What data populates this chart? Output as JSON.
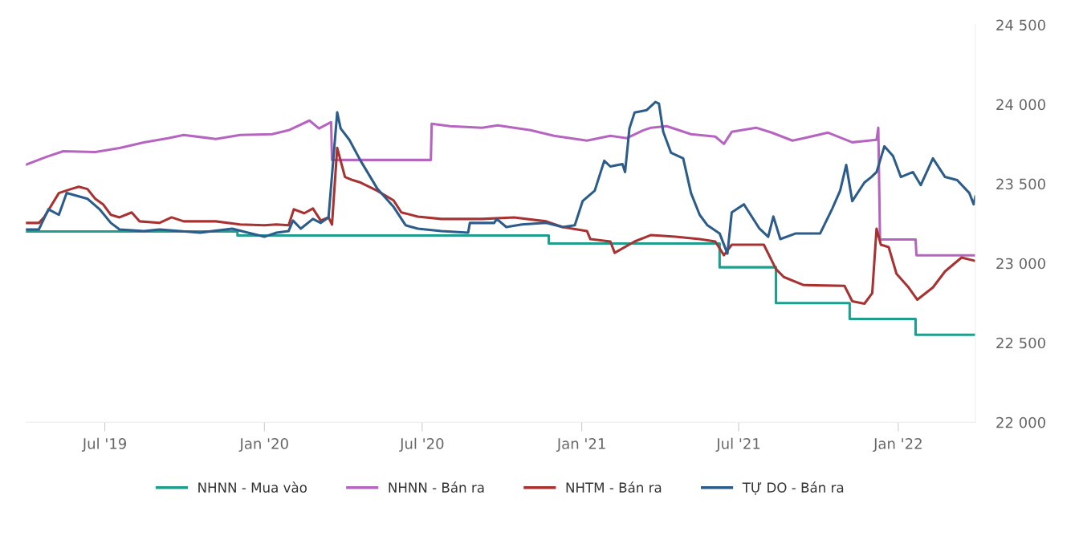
{
  "chart_data": {
    "type": "line",
    "xlim": [
      "2019-04-01",
      "2022-03-31"
    ],
    "xticks": [
      {
        "value": "2019-07-01",
        "label": "Jul '19"
      },
      {
        "value": "2020-01-01",
        "label": "Jan '20"
      },
      {
        "value": "2020-07-01",
        "label": "Jul '20"
      },
      {
        "value": "2021-01-01",
        "label": "Jan '21"
      },
      {
        "value": "2021-07-01",
        "label": "Jul '21"
      },
      {
        "value": "2022-01-01",
        "label": "Jan '22"
      }
    ],
    "ylim": [
      22000,
      24500
    ],
    "yticks": [
      {
        "value": 22000,
        "label": "22 000"
      },
      {
        "value": 22500,
        "label": "22 500"
      },
      {
        "value": 23000,
        "label": "23 000"
      },
      {
        "value": 23500,
        "label": "23 500"
      },
      {
        "value": 24000,
        "label": "24 000"
      },
      {
        "value": 24500,
        "label": "24 500"
      }
    ],
    "grid": false,
    "legend": "bottom",
    "marker": "none",
    "line_style": "solid",
    "series": [
      {
        "name": "NHNN - Mua vào",
        "color": "#1f9e8e",
        "type": "step",
        "x": [
          "2019-04-01",
          "2019-12-01",
          "2020-11-24",
          "2021-06-09",
          "2021-08-13",
          "2021-11-06",
          "2022-01-21",
          "2022-03-31"
        ],
        "values": [
          23200,
          23175,
          23125,
          22975,
          22750,
          22650,
          22550,
          22550
        ]
      },
      {
        "name": "NHNN - Bán ra",
        "color": "#b565c0",
        "x": [
          "2019-04-01",
          "2019-04-25",
          "2019-05-14",
          "2019-06-20",
          "2019-07-18",
          "2019-08-15",
          "2019-09-12",
          "2019-09-30",
          "2019-11-06",
          "2019-12-04",
          "2020-01-10",
          "2020-01-29",
          "2020-02-22",
          "2020-03-04",
          "2020-03-18",
          "2020-03-19",
          "2020-07-11",
          "2020-07-12",
          "2020-08-02",
          "2020-09-08",
          "2020-09-26",
          "2020-11-03",
          "2020-11-30",
          "2021-01-07",
          "2021-02-03",
          "2021-02-22",
          "2021-03-13",
          "2021-03-22",
          "2021-04-09",
          "2021-05-07",
          "2021-06-04",
          "2021-06-14",
          "2021-06-23",
          "2021-07-21",
          "2021-08-08",
          "2021-09-01",
          "2021-09-14",
          "2021-10-12",
          "2021-11-09",
          "2021-11-28",
          "2021-12-07",
          "2021-12-09",
          "2021-12-11",
          "2022-01-21",
          "2022-01-22",
          "2022-03-31"
        ],
        "values": [
          23620,
          23670,
          23705,
          23700,
          23725,
          23760,
          23787,
          23807,
          23782,
          23807,
          23812,
          23837,
          23898,
          23848,
          23888,
          23650,
          23650,
          23878,
          23863,
          23853,
          23868,
          23837,
          23802,
          23772,
          23802,
          23787,
          23837,
          23853,
          23863,
          23812,
          23797,
          23751,
          23827,
          23853,
          23822,
          23772,
          23787,
          23822,
          23761,
          23772,
          23777,
          23853,
          23150,
          23150,
          23050,
          23050
        ]
      },
      {
        "name": "NHTM - Bán ra",
        "color": "#a83232",
        "x": [
          "2019-04-01",
          "2019-04-16",
          "2019-04-22",
          "2019-05-09",
          "2019-05-23",
          "2019-06-01",
          "2019-06-11",
          "2019-06-20",
          "2019-06-29",
          "2019-07-08",
          "2019-07-18",
          "2019-08-01",
          "2019-08-10",
          "2019-09-02",
          "2019-09-16",
          "2019-09-30",
          "2019-11-06",
          "2019-12-04",
          "2020-01-01",
          "2020-01-15",
          "2020-01-29",
          "2020-02-04",
          "2020-02-16",
          "2020-02-26",
          "2020-03-06",
          "2020-03-15",
          "2020-03-19",
          "2020-03-25",
          "2020-04-03",
          "2020-04-12",
          "2020-04-21",
          "2020-05-10",
          "2020-05-29",
          "2020-06-07",
          "2020-06-26",
          "2020-07-23",
          "2020-09-08",
          "2020-10-15",
          "2020-11-21",
          "2020-12-10",
          "2021-01-07",
          "2021-01-11",
          "2021-02-03",
          "2021-02-08",
          "2021-03-03",
          "2021-03-22",
          "2021-04-19",
          "2021-05-17",
          "2021-06-04",
          "2021-06-14",
          "2021-06-23",
          "2021-07-21",
          "2021-07-30",
          "2021-08-13",
          "2021-08-22",
          "2021-09-14",
          "2021-10-31",
          "2021-11-09",
          "2021-11-23",
          "2021-12-02",
          "2021-12-07",
          "2021-12-12",
          "2021-12-21",
          "2021-12-30",
          "2022-01-13",
          "2022-01-23",
          "2022-02-10",
          "2022-02-24",
          "2022-03-15",
          "2022-03-31"
        ],
        "values": [
          23254,
          23254,
          23289,
          23442,
          23467,
          23482,
          23467,
          23406,
          23371,
          23305,
          23289,
          23320,
          23264,
          23254,
          23289,
          23264,
          23264,
          23244,
          23239,
          23244,
          23239,
          23340,
          23315,
          23345,
          23269,
          23289,
          23244,
          23726,
          23543,
          23523,
          23508,
          23457,
          23396,
          23320,
          23294,
          23279,
          23279,
          23289,
          23264,
          23228,
          23203,
          23152,
          23137,
          23066,
          23137,
          23178,
          23167,
          23152,
          23137,
          23051,
          23117,
          23117,
          23117,
          22964,
          22914,
          22863,
          22858,
          22761,
          22746,
          22812,
          23218,
          23117,
          23102,
          22934,
          22848,
          22771,
          22848,
          22949,
          23036,
          23015
        ]
      },
      {
        "name": "TỰ DO - Bán ra",
        "color": "#2b5c8a",
        "x": [
          "2019-04-01",
          "2019-04-16",
          "2019-04-27",
          "2019-05-09",
          "2019-05-18",
          "2019-06-01",
          "2019-06-11",
          "2019-06-25",
          "2019-07-08",
          "2019-07-18",
          "2019-08-15",
          "2019-09-02",
          "2019-10-19",
          "2019-11-25",
          "2019-12-13",
          "2020-01-01",
          "2020-01-15",
          "2020-01-29",
          "2020-02-03",
          "2020-02-12",
          "2020-02-26",
          "2020-03-06",
          "2020-03-15",
          "2020-03-25",
          "2020-03-29",
          "2020-04-08",
          "2020-04-21",
          "2020-05-10",
          "2020-05-29",
          "2020-06-12",
          "2020-06-26",
          "2020-07-23",
          "2020-08-23",
          "2020-08-25",
          "2020-09-22",
          "2020-09-25",
          "2020-10-06",
          "2020-10-24",
          "2020-11-21",
          "2020-12-10",
          "2020-12-24",
          "2021-01-02",
          "2021-01-16",
          "2021-01-27",
          "2021-02-03",
          "2021-02-17",
          "2021-02-20",
          "2021-02-25",
          "2021-03-03",
          "2021-03-17",
          "2021-03-27",
          "2021-03-31",
          "2021-04-05",
          "2021-04-14",
          "2021-04-28",
          "2021-05-07",
          "2021-05-17",
          "2021-05-26",
          "2021-06-09",
          "2021-06-18",
          "2021-06-23",
          "2021-07-07",
          "2021-07-25",
          "2021-08-04",
          "2021-08-10",
          "2021-08-18",
          "2021-09-05",
          "2021-10-03",
          "2021-10-17",
          "2021-10-26",
          "2021-11-02",
          "2021-11-09",
          "2021-11-23",
          "2021-12-01",
          "2021-12-07",
          "2021-12-16",
          "2021-12-26",
          "2022-01-04",
          "2022-01-18",
          "2022-01-27",
          "2022-02-10",
          "2022-02-24",
          "2022-03-10",
          "2022-03-24",
          "2022-03-29",
          "2022-03-31"
        ],
        "values": [
          23213,
          23213,
          23340,
          23305,
          23442,
          23421,
          23406,
          23340,
          23254,
          23213,
          23203,
          23213,
          23193,
          23218,
          23193,
          23167,
          23193,
          23203,
          23269,
          23218,
          23279,
          23254,
          23289,
          23949,
          23848,
          23777,
          23645,
          23472,
          23355,
          23239,
          23218,
          23203,
          23193,
          23254,
          23254,
          23279,
          23228,
          23244,
          23254,
          23228,
          23239,
          23391,
          23457,
          23645,
          23609,
          23624,
          23574,
          23848,
          23949,
          23964,
          24015,
          24005,
          23827,
          23695,
          23660,
          23442,
          23305,
          23239,
          23188,
          23061,
          23320,
          23371,
          23218,
          23167,
          23294,
          23152,
          23188,
          23188,
          23345,
          23457,
          23619,
          23391,
          23508,
          23543,
          23574,
          23736,
          23675,
          23543,
          23574,
          23492,
          23660,
          23543,
          23523,
          23442,
          23371,
          23421
        ]
      }
    ]
  }
}
